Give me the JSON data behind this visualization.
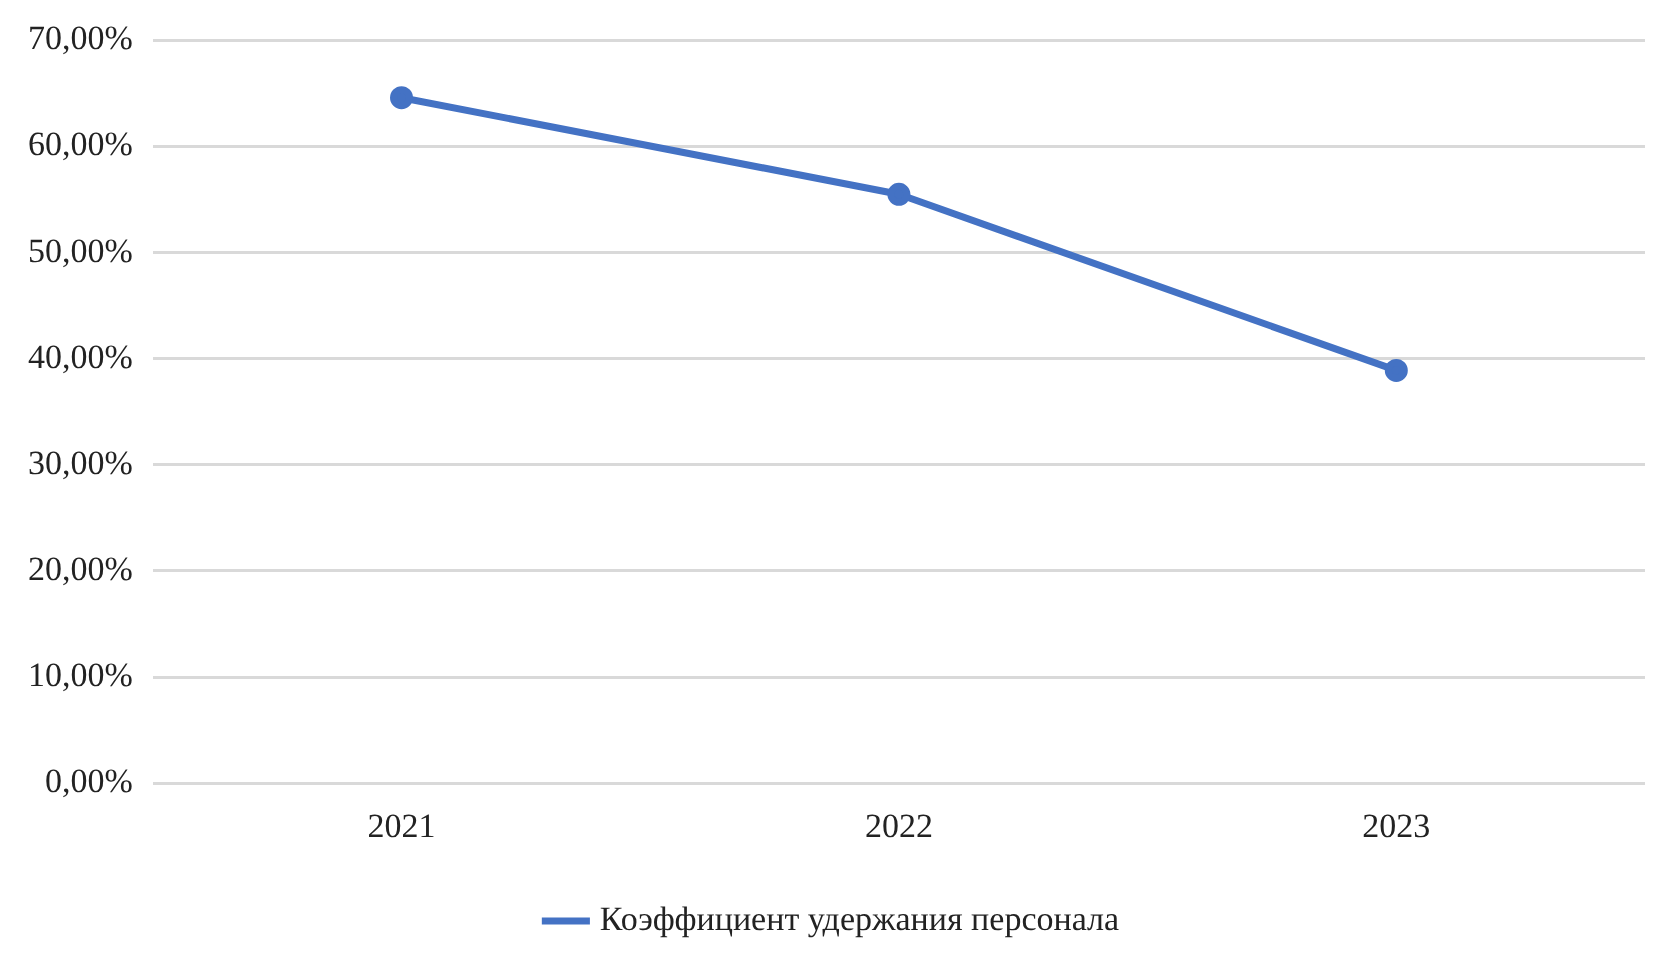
{
  "chart_data": {
    "type": "line",
    "categories": [
      "2021",
      "2022",
      "2023"
    ],
    "series": [
      {
        "name": "Коэффициент удержания персонала",
        "color": "#4472c4",
        "values": [
          64.6,
          55.5,
          38.9
        ]
      }
    ],
    "ylim": [
      0,
      70
    ],
    "yticks": [
      {
        "value": 0,
        "label": "0,00%"
      },
      {
        "value": 10,
        "label": "10,00%"
      },
      {
        "value": 20,
        "label": "20,00%"
      },
      {
        "value": 30,
        "label": "30,00%"
      },
      {
        "value": 40,
        "label": "40,00%"
      },
      {
        "value": 50,
        "label": "50,00%"
      },
      {
        "value": 60,
        "label": "60,00%"
      },
      {
        "value": 70,
        "label": "70,00%"
      }
    ],
    "grid": "y",
    "legend": "bottom",
    "marker": "circle",
    "line_style": "solid"
  }
}
